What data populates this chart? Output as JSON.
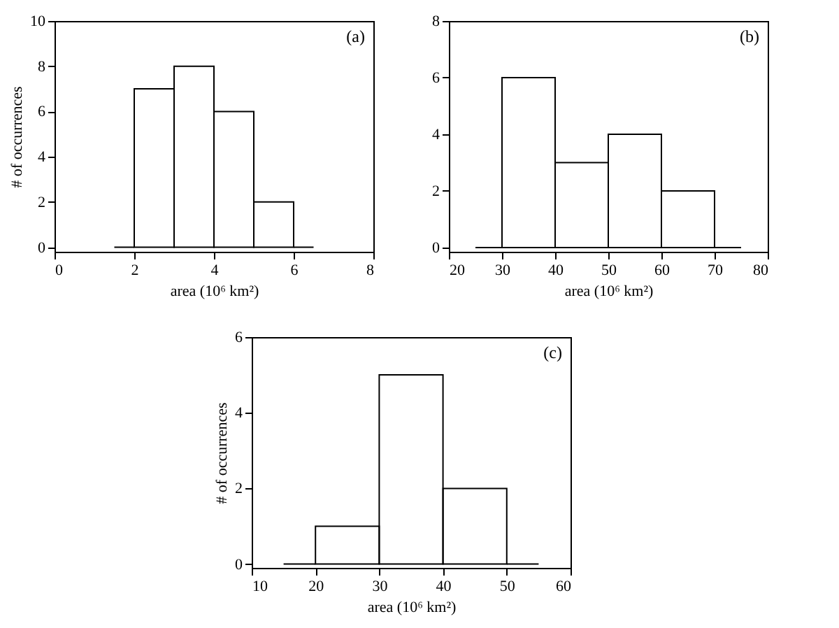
{
  "chart_data": [
    {
      "type": "histogram",
      "bins": [
        1.5,
        2,
        3,
        4,
        5,
        6,
        6.5
      ],
      "values": [
        0,
        7,
        8,
        6,
        2,
        0
      ],
      "xlim": [
        0,
        8
      ],
      "xticks": [
        0,
        2,
        4,
        6,
        8
      ],
      "ylim": [
        -0.2,
        10
      ],
      "yticks": [
        0,
        2,
        4,
        6,
        8,
        10
      ],
      "xlabel": "area (10⁶ km²)",
      "ylabel": "# of occurrences",
      "annotations": [
        "(a)"
      ]
    },
    {
      "type": "histogram",
      "bins": [
        25,
        30,
        40,
        50,
        60,
        70,
        75
      ],
      "values": [
        0,
        6,
        3,
        4,
        2,
        0
      ],
      "xlim": [
        20,
        80
      ],
      "xticks": [
        20,
        30,
        40,
        50,
        60,
        70,
        80
      ],
      "ylim": [
        -0.15,
        8
      ],
      "yticks": [
        0,
        2,
        4,
        6,
        8
      ],
      "xlabel": "area (10⁶ km²)",
      "annotations": [
        "(b)"
      ]
    },
    {
      "type": "histogram",
      "bins": [
        15,
        20,
        30,
        40,
        50,
        55
      ],
      "values": [
        0,
        1,
        5,
        2,
        0
      ],
      "xlim": [
        10,
        60
      ],
      "xticks": [
        10,
        20,
        30,
        40,
        50,
        60
      ],
      "ylim": [
        -0.1,
        6
      ],
      "yticks": [
        0,
        2,
        4,
        6
      ],
      "xlabel": "area (10⁶ km²)",
      "ylabel": "# of occurrences",
      "annotations": [
        "(c)"
      ]
    }
  ]
}
